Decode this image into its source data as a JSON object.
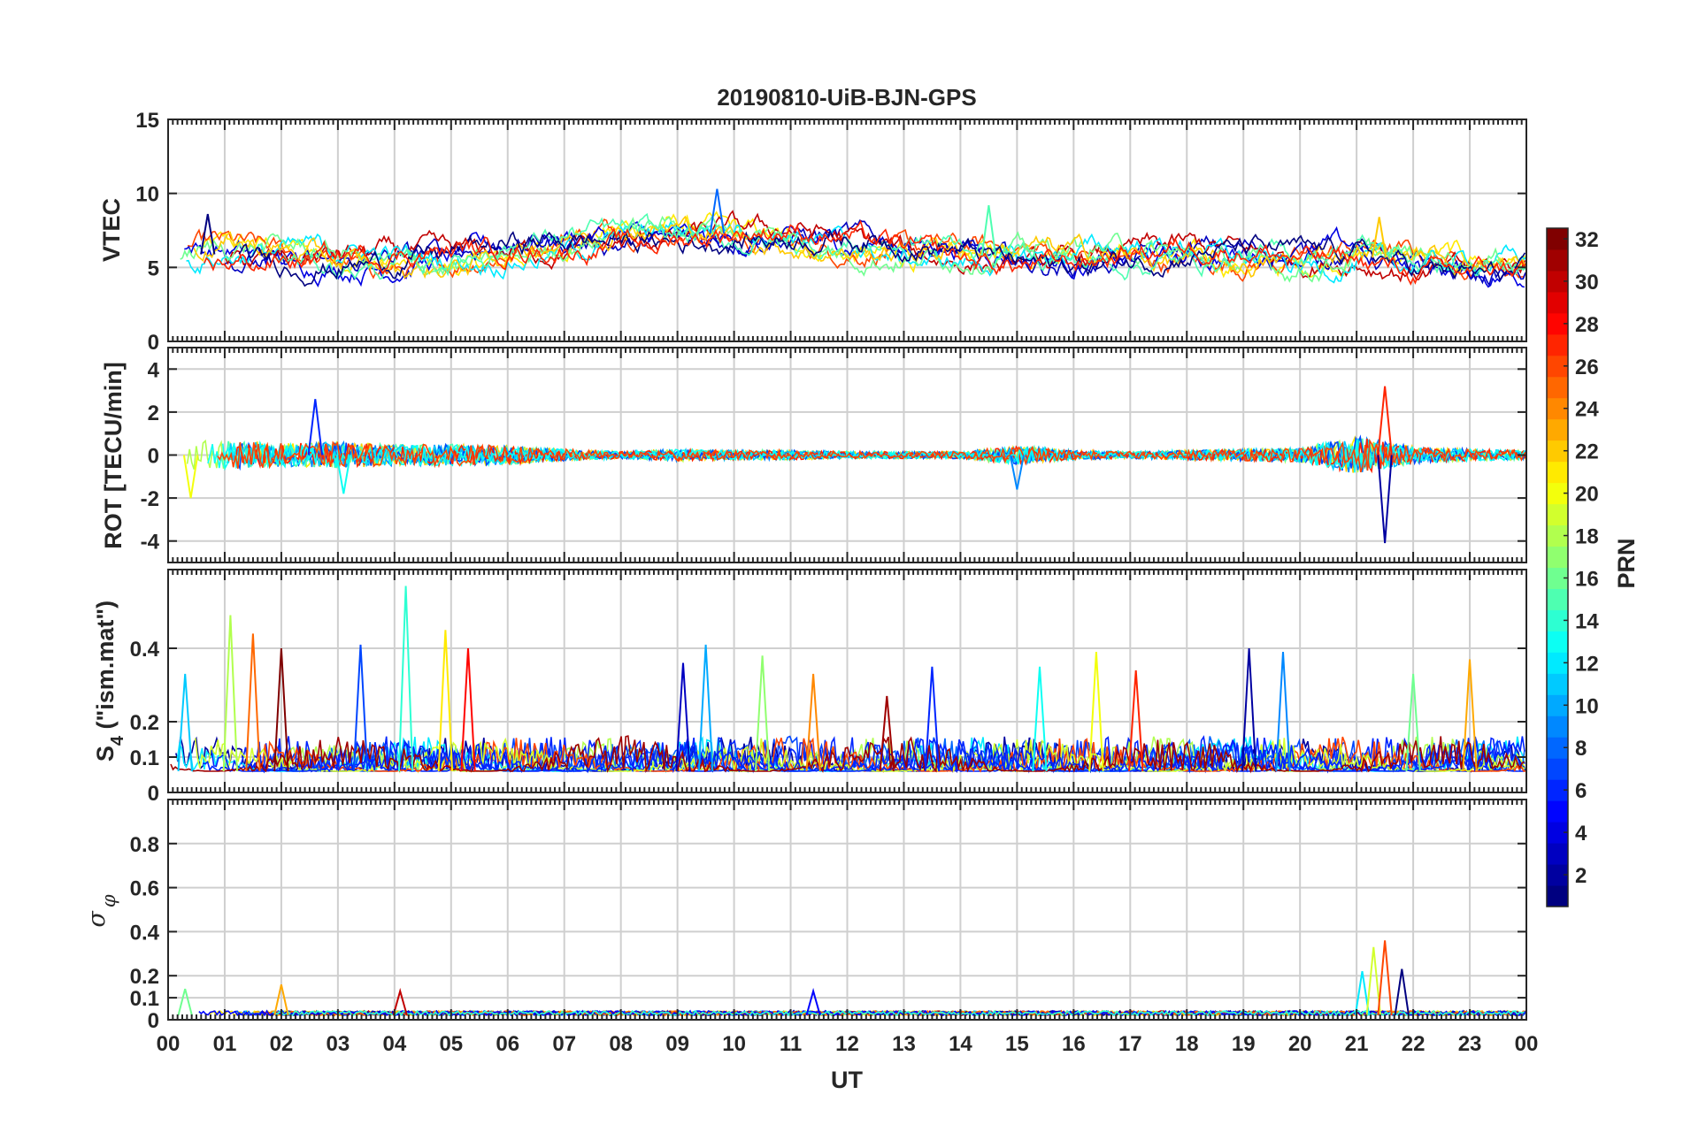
{
  "chart_data": {
    "type": "line",
    "title": "20190810-UiB-BJN-GPS",
    "xlabel": "UT",
    "x_range_hours": [
      0,
      24
    ],
    "x_tick_labels": [
      "00",
      "01",
      "02",
      "03",
      "04",
      "05",
      "06",
      "07",
      "08",
      "09",
      "10",
      "11",
      "12",
      "13",
      "14",
      "15",
      "16",
      "17",
      "18",
      "19",
      "20",
      "21",
      "22",
      "23",
      "00"
    ],
    "grid": true,
    "colormap": "jet",
    "colorbar": {
      "label": "PRN",
      "range": [
        1,
        32
      ],
      "tick_labels": [
        "2",
        "4",
        "6",
        "8",
        "10",
        "12",
        "14",
        "16",
        "18",
        "20",
        "22",
        "24",
        "26",
        "28",
        "30",
        "32"
      ],
      "placement": "right"
    },
    "panels": [
      {
        "key": "vtec",
        "ylabel": "VTEC",
        "ylim": [
          0,
          15
        ],
        "y_ticks": [
          0,
          5,
          10,
          15
        ],
        "y_tick_labels": [
          "0",
          "5",
          "10",
          "15"
        ],
        "approx_mean_trend": [
          {
            "hour": 0,
            "value": 5.6
          },
          {
            "hour": 1,
            "value": 6.0
          },
          {
            "hour": 2,
            "value": 5.8
          },
          {
            "hour": 3,
            "value": 5.6
          },
          {
            "hour": 4,
            "value": 5.4
          },
          {
            "hour": 5,
            "value": 5.5
          },
          {
            "hour": 6,
            "value": 6.0
          },
          {
            "hour": 7,
            "value": 6.6
          },
          {
            "hour": 8,
            "value": 7.1
          },
          {
            "hour": 9,
            "value": 7.3
          },
          {
            "hour": 10,
            "value": 7.3
          },
          {
            "hour": 11,
            "value": 7.0
          },
          {
            "hour": 12,
            "value": 6.5
          },
          {
            "hour": 13,
            "value": 6.1
          },
          {
            "hour": 14,
            "value": 5.9
          },
          {
            "hour": 15,
            "value": 5.7
          },
          {
            "hour": 16,
            "value": 5.7
          },
          {
            "hour": 17,
            "value": 5.9
          },
          {
            "hour": 18,
            "value": 5.9
          },
          {
            "hour": 19,
            "value": 5.7
          },
          {
            "hour": 20,
            "value": 5.4
          },
          {
            "hour": 21,
            "value": 5.9
          },
          {
            "hour": 22,
            "value": 5.3
          },
          {
            "hour": 23,
            "value": 5.1
          },
          {
            "hour": 24,
            "value": 5.0
          }
        ],
        "notable_peaks": [
          {
            "hour": 0.7,
            "value": 8.6
          },
          {
            "hour": 9.7,
            "value": 10.3
          },
          {
            "hour": 14.5,
            "value": 9.2
          },
          {
            "hour": 21.4,
            "value": 8.4
          }
        ]
      },
      {
        "key": "rot",
        "ylabel": "ROT [TECU/min]",
        "ylim": [
          -5,
          5
        ],
        "y_ticks": [
          -4,
          -2,
          0,
          2,
          4
        ],
        "y_tick_labels": [
          "-4",
          "-2",
          "0",
          "2",
          "4"
        ],
        "approx_activity_envelope": [
          {
            "hour": 0,
            "value": 1.3
          },
          {
            "hour": 1,
            "value": 1.2
          },
          {
            "hour": 2,
            "value": 1.0
          },
          {
            "hour": 3,
            "value": 1.1
          },
          {
            "hour": 4,
            "value": 0.9
          },
          {
            "hour": 5,
            "value": 0.9
          },
          {
            "hour": 6,
            "value": 0.8
          },
          {
            "hour": 7,
            "value": 0.5
          },
          {
            "hour": 8,
            "value": 0.3
          },
          {
            "hour": 9,
            "value": 0.5
          },
          {
            "hour": 10,
            "value": 0.4
          },
          {
            "hour": 11,
            "value": 0.4
          },
          {
            "hour": 12,
            "value": 0.3
          },
          {
            "hour": 13,
            "value": 0.3
          },
          {
            "hour": 14,
            "value": 0.3
          },
          {
            "hour": 15,
            "value": 0.8
          },
          {
            "hour": 16,
            "value": 0.4
          },
          {
            "hour": 17,
            "value": 0.3
          },
          {
            "hour": 18,
            "value": 0.4
          },
          {
            "hour": 19,
            "value": 0.5
          },
          {
            "hour": 20,
            "value": 0.6
          },
          {
            "hour": 21,
            "value": 1.6
          },
          {
            "hour": 22,
            "value": 0.7
          },
          {
            "hour": 23,
            "value": 0.5
          },
          {
            "hour": 24,
            "value": 0.4
          }
        ],
        "notable_peaks": [
          {
            "hour": 2.6,
            "value": 2.6
          },
          {
            "hour": 3.1,
            "value": -1.8
          },
          {
            "hour": 0.4,
            "value": -2.0
          },
          {
            "hour": 21.5,
            "value": 3.2
          },
          {
            "hour": 21.5,
            "value": -4.1
          },
          {
            "hour": 15.0,
            "value": -1.6
          }
        ]
      },
      {
        "key": "s4",
        "ylabel": "S4 (\"ism.mat\")",
        "ylabel_main": "S",
        "ylabel_sub": "4",
        "ylabel_rest": " (\"ism.mat\")",
        "ylim": [
          0,
          0.6
        ],
        "y_ticks": [
          0,
          0.1,
          0.2,
          0.4
        ],
        "y_tick_labels": [
          "0",
          "0.1",
          "0.2",
          "0.4"
        ],
        "approx_baseline": 0.06,
        "notable_peaks": [
          {
            "hour": 0.3,
            "value": 0.33
          },
          {
            "hour": 1.1,
            "value": 0.49
          },
          {
            "hour": 1.5,
            "value": 0.44
          },
          {
            "hour": 2.0,
            "value": 0.4
          },
          {
            "hour": 3.4,
            "value": 0.41
          },
          {
            "hour": 4.2,
            "value": 0.57
          },
          {
            "hour": 4.9,
            "value": 0.45
          },
          {
            "hour": 5.3,
            "value": 0.4
          },
          {
            "hour": 9.1,
            "value": 0.36
          },
          {
            "hour": 9.5,
            "value": 0.41
          },
          {
            "hour": 10.5,
            "value": 0.38
          },
          {
            "hour": 11.4,
            "value": 0.33
          },
          {
            "hour": 12.7,
            "value": 0.27
          },
          {
            "hour": 13.5,
            "value": 0.35
          },
          {
            "hour": 15.4,
            "value": 0.35
          },
          {
            "hour": 16.4,
            "value": 0.39
          },
          {
            "hour": 17.1,
            "value": 0.34
          },
          {
            "hour": 19.1,
            "value": 0.4
          },
          {
            "hour": 19.7,
            "value": 0.39
          },
          {
            "hour": 22.0,
            "value": 0.33
          },
          {
            "hour": 23.0,
            "value": 0.37
          }
        ]
      },
      {
        "key": "sigma_phi",
        "ylabel": "σφ",
        "ylabel_main": "σ",
        "ylabel_sub": "φ",
        "ylim": [
          0,
          1
        ],
        "y_ticks": [
          0,
          0.1,
          0.2,
          0.4,
          0.6,
          0.8
        ],
        "y_tick_labels": [
          "0",
          "0.1",
          "0.2",
          "0.4",
          "0.6",
          "0.8"
        ],
        "approx_baseline": 0.02,
        "notable_peaks": [
          {
            "hour": 0.3,
            "value": 0.14
          },
          {
            "hour": 2.0,
            "value": 0.16
          },
          {
            "hour": 4.1,
            "value": 0.13
          },
          {
            "hour": 11.4,
            "value": 0.13
          },
          {
            "hour": 21.1,
            "value": 0.22
          },
          {
            "hour": 21.3,
            "value": 0.33
          },
          {
            "hour": 21.5,
            "value": 0.36
          },
          {
            "hour": 21.8,
            "value": 0.23
          }
        ]
      }
    ]
  }
}
